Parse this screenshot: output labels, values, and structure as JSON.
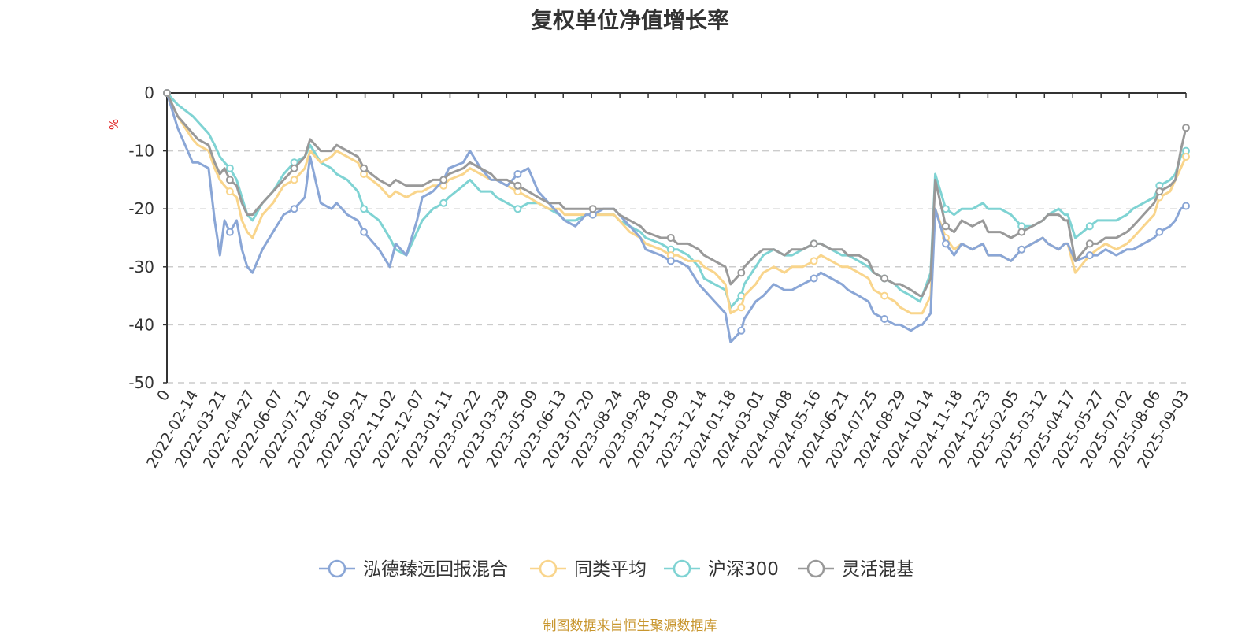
{
  "chart_data": {
    "type": "line",
    "title": "复权单位净值增长率",
    "y_unit": "%",
    "ylim": [
      -50,
      0
    ],
    "y_ticks": [
      0,
      -10,
      -20,
      -30,
      -40,
      -50
    ],
    "y_tick_labels": [
      "0",
      "-10",
      "-20",
      "-30",
      "-40",
      "-50"
    ],
    "grid": "horizontal dashed",
    "legend_position": "bottom",
    "x_tick_labels": [
      "0",
      "2022-02-14",
      "2022-03-21",
      "2022-04-27",
      "2022-06-07",
      "2022-07-12",
      "2022-08-16",
      "2022-09-21",
      "2022-11-02",
      "2022-12-07",
      "2023-01-11",
      "2023-02-22",
      "2023-03-29",
      "2023-05-09",
      "2023-06-13",
      "2023-07-20",
      "2023-08-24",
      "2023-09-28",
      "2023-11-09",
      "2023-12-14",
      "2024-01-18",
      "2024-03-01",
      "2024-04-08",
      "2024-05-16",
      "2024-06-21",
      "2024-07-25",
      "2024-08-29",
      "2024-10-14",
      "2024-11-18",
      "2024-12-23",
      "2025-02-05",
      "2025-03-12",
      "2025-04-17",
      "2025-05-27",
      "2025-07-02",
      "2025-08-06",
      "2025-09-03"
    ],
    "x": [
      "2022-01-04",
      "2022-01-18",
      "2022-02-07",
      "2022-02-14",
      "2022-02-28",
      "2022-03-08",
      "2022-03-15",
      "2022-03-21",
      "2022-03-28",
      "2022-04-06",
      "2022-04-13",
      "2022-04-20",
      "2022-04-27",
      "2022-05-10",
      "2022-05-24",
      "2022-06-07",
      "2022-06-21",
      "2022-07-05",
      "2022-07-12",
      "2022-07-26",
      "2022-08-09",
      "2022-08-16",
      "2022-08-30",
      "2022-09-13",
      "2022-09-21",
      "2022-10-11",
      "2022-10-25",
      "2022-11-02",
      "2022-11-16",
      "2022-11-30",
      "2022-12-07",
      "2022-12-21",
      "2023-01-04",
      "2023-01-11",
      "2023-01-30",
      "2023-02-08",
      "2023-02-22",
      "2023-03-08",
      "2023-03-15",
      "2023-03-29",
      "2023-04-12",
      "2023-04-26",
      "2023-05-09",
      "2023-05-23",
      "2023-06-06",
      "2023-06-13",
      "2023-06-27",
      "2023-07-11",
      "2023-07-20",
      "2023-08-03",
      "2023-08-17",
      "2023-08-24",
      "2023-09-07",
      "2023-09-21",
      "2023-09-28",
      "2023-10-18",
      "2023-10-31",
      "2023-11-09",
      "2023-11-23",
      "2023-12-07",
      "2023-12-14",
      "2023-12-28",
      "2024-01-11",
      "2024-01-18",
      "2024-02-01",
      "2024-02-05",
      "2024-02-20",
      "2024-03-01",
      "2024-03-15",
      "2024-03-29",
      "2024-04-08",
      "2024-04-22",
      "2024-05-07",
      "2024-05-16",
      "2024-05-30",
      "2024-06-13",
      "2024-06-21",
      "2024-07-05",
      "2024-07-18",
      "2024-07-25",
      "2024-08-08",
      "2024-08-22",
      "2024-08-29",
      "2024-09-12",
      "2024-09-24",
      "2024-09-27",
      "2024-10-08",
      "2024-10-14",
      "2024-10-28",
      "2024-11-08",
      "2024-11-18",
      "2024-12-02",
      "2024-12-16",
      "2024-12-23",
      "2025-01-08",
      "2025-01-22",
      "2025-02-05",
      "2025-02-19",
      "2025-03-05",
      "2025-03-12",
      "2025-03-26",
      "2025-04-03",
      "2025-04-07",
      "2025-04-17",
      "2025-05-06",
      "2025-05-16",
      "2025-05-27",
      "2025-06-10",
      "2025-06-24",
      "2025-07-02",
      "2025-07-16",
      "2025-07-30",
      "2025-08-06",
      "2025-08-20",
      "2025-08-27",
      "2025-09-03",
      "2025-09-10"
    ],
    "series": [
      {
        "name": "泓德臻远回报混合",
        "color": "#8aa6d6",
        "values": [
          0,
          -6,
          -12,
          -12,
          -13,
          -22,
          -28,
          -22,
          -24,
          -22,
          -27,
          -30,
          -31,
          -27,
          -24,
          -21,
          -20,
          -18,
          -11,
          -19,
          -20,
          -19,
          -21,
          -22,
          -24,
          -27,
          -30,
          -26,
          -28,
          -22,
          -18,
          -17,
          -15,
          -13,
          -12,
          -10,
          -13,
          -15,
          -15,
          -16,
          -14,
          -13,
          -17,
          -19,
          -21,
          -22,
          -23,
          -21,
          -21,
          -20,
          -20,
          -21,
          -23,
          -25,
          -27,
          -28,
          -29,
          -29,
          -30,
          -33,
          -34,
          -36,
          -38,
          -43,
          -41,
          -39,
          -36,
          -35,
          -33,
          -34,
          -34,
          -33,
          -32,
          -31,
          -32,
          -33,
          -34,
          -35,
          -36,
          -38,
          -39,
          -40,
          -40,
          -41,
          -40,
          -40,
          -38,
          -20,
          -26,
          -28,
          -26,
          -27,
          -26,
          -28,
          -28,
          -29,
          -27,
          -26,
          -25,
          -26,
          -27,
          -26,
          -26,
          -29,
          -28,
          -28,
          -27,
          -28,
          -27,
          -27,
          -26,
          -25,
          -24,
          -23,
          -22,
          -20,
          -19.5
        ]
      },
      {
        "name": "同类平均",
        "color": "#f9d58c",
        "values": [
          0,
          -4,
          -8,
          -9,
          -10,
          -13,
          -15,
          -16,
          -17,
          -18,
          -22,
          -24,
          -25,
          -21,
          -19,
          -16,
          -15,
          -13,
          -10,
          -12,
          -11,
          -10,
          -11,
          -12,
          -14,
          -16,
          -18,
          -17,
          -18,
          -17,
          -17,
          -16,
          -16,
          -15,
          -14,
          -13,
          -14,
          -15,
          -15,
          -16,
          -17,
          -18,
          -19,
          -20,
          -20,
          -21,
          -21,
          -21,
          -21,
          -21,
          -21,
          -22,
          -24,
          -25,
          -26,
          -27,
          -28,
          -28,
          -29,
          -29,
          -30,
          -31,
          -33,
          -38,
          -37,
          -35,
          -33,
          -31,
          -30,
          -31,
          -30,
          -30,
          -29,
          -28,
          -29,
          -30,
          -30,
          -31,
          -32,
          -34,
          -35,
          -36,
          -37,
          -38,
          -38,
          -38,
          -35,
          -20,
          -25,
          -27,
          -26,
          -27,
          -26,
          -28,
          -28,
          -29,
          -27,
          -26,
          -25,
          -26,
          -27,
          -26,
          -26,
          -31,
          -28,
          -27,
          -26,
          -27,
          -26,
          -25,
          -23,
          -21,
          -18,
          -17,
          -15,
          -13,
          -11
        ]
      },
      {
        "name": "沪深300",
        "color": "#7fd3d3",
        "values": [
          0,
          -2,
          -4,
          -5,
          -7,
          -9,
          -11,
          -12,
          -13,
          -15,
          -18,
          -21,
          -22,
          -19,
          -17,
          -14,
          -12,
          -11,
          -9,
          -12,
          -13,
          -14,
          -15,
          -17,
          -20,
          -22,
          -25,
          -27,
          -28,
          -24,
          -22,
          -20,
          -19,
          -18,
          -16,
          -15,
          -17,
          -17,
          -18,
          -19,
          -20,
          -19,
          -19,
          -20,
          -21,
          -22,
          -22,
          -21,
          -21,
          -21,
          -21,
          -22,
          -23,
          -24,
          -25,
          -26,
          -27,
          -27,
          -28,
          -30,
          -32,
          -33,
          -34,
          -37,
          -35,
          -33,
          -30,
          -28,
          -27,
          -28,
          -28,
          -27,
          -26,
          -26,
          -27,
          -28,
          -28,
          -29,
          -30,
          -31,
          -32,
          -33,
          -34,
          -35,
          -36,
          -35,
          -31,
          -14,
          -20,
          -21,
          -20,
          -20,
          -19,
          -20,
          -20,
          -21,
          -23,
          -23,
          -22,
          -21,
          -20,
          -21,
          -21,
          -25,
          -23,
          -22,
          -22,
          -22,
          -21,
          -20,
          -19,
          -18,
          -16,
          -15,
          -14,
          -11,
          -10
        ]
      },
      {
        "name": "灵活混基",
        "color": "#999999",
        "values": [
          0,
          -4,
          -7,
          -8,
          -9,
          -12,
          -14,
          -13,
          -15,
          -16,
          -19,
          -21,
          -21,
          -19,
          -17,
          -15,
          -13,
          -11,
          -8,
          -10,
          -10,
          -9,
          -10,
          -11,
          -13,
          -15,
          -16,
          -15,
          -16,
          -16,
          -16,
          -15,
          -15,
          -14,
          -13,
          -12,
          -13,
          -14,
          -15,
          -15,
          -16,
          -17,
          -18,
          -19,
          -19,
          -20,
          -20,
          -20,
          -20,
          -20,
          -20,
          -21,
          -22,
          -23,
          -24,
          -25,
          -25,
          -26,
          -26,
          -27,
          -28,
          -29,
          -30,
          -33,
          -31,
          -30,
          -28,
          -27,
          -27,
          -28,
          -27,
          -27,
          -26,
          -26,
          -27,
          -27,
          -28,
          -28,
          -29,
          -31,
          -32,
          -33,
          -33,
          -34,
          -35,
          -35,
          -32,
          -15,
          -23,
          -24,
          -22,
          -23,
          -22,
          -24,
          -24,
          -25,
          -24,
          -23,
          -22,
          -21,
          -21,
          -22,
          -22,
          -29,
          -26,
          -26,
          -25,
          -25,
          -24,
          -23,
          -21,
          -19,
          -17,
          -16,
          -15,
          -10,
          -6
        ]
      }
    ]
  },
  "source_note": "制图数据来自恒生聚源数据库"
}
